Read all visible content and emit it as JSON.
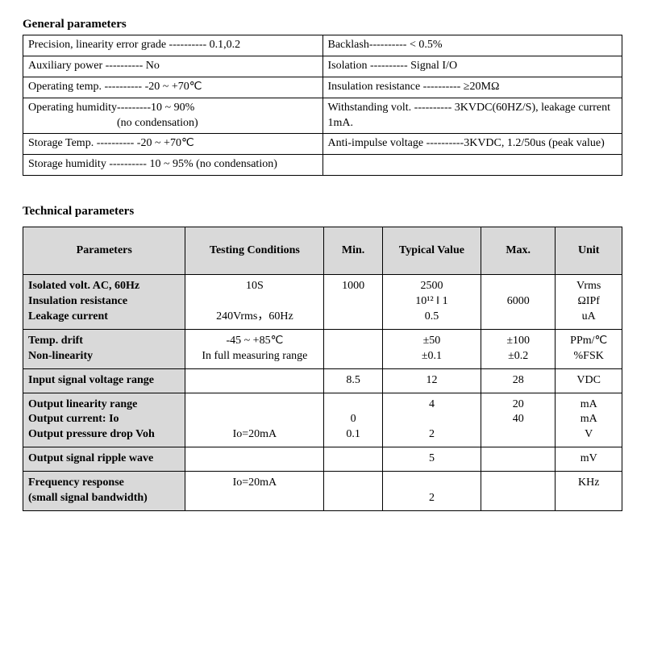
{
  "general": {
    "title": "General parameters",
    "rows": [
      {
        "left": "Precision, linearity error grade ---------- 0.1,0.2",
        "right": "Backlash---------- < 0.5%"
      },
      {
        "left": "Auxiliary power ---------- No",
        "right": "Isolation    ---------- Signal I/O"
      },
      {
        "left": "Operating temp. ---------- -20 ~ +70℃",
        "right": "Insulation resistance   ---------- ≥20MΩ"
      },
      {
        "left": "Operating humidity---------10 ~ 90%",
        "left2": "(no condensation)",
        "right": "Withstanding  volt.  ----------  3KVDC(60HZ/S),  leakage current 1mA."
      },
      {
        "left": "Storage Temp. ---------- -20 ~ +70℃",
        "right": "Anti-impulse  voltage  ----------3KVDC,  1.2/50us  (peak value)"
      },
      {
        "left": "Storage humidity ---------- 10 ~ 95% (no condensation)",
        "right": ""
      }
    ]
  },
  "technical": {
    "title": "Technical parameters",
    "headers": {
      "p": "Parameters",
      "c": "Testing Conditions",
      "min": "Min.",
      "typ": "Typical Value",
      "max": "Max.",
      "unit": "Unit"
    },
    "group1": {
      "params": [
        "Isolated volt. AC, 60Hz",
        "Insulation resistance",
        "Leakage current"
      ],
      "cond": [
        "10S",
        "",
        "240Vrms，60Hz"
      ],
      "min": [
        "1000",
        "",
        ""
      ],
      "typ": [
        "2500",
        "10¹² ‖ 1",
        "0.5"
      ],
      "max": [
        "",
        "6000",
        ""
      ],
      "unit": [
        "Vrms",
        "ΩIPf",
        "uA"
      ]
    },
    "group2": {
      "params": [
        "Temp. drift",
        "Non-linearity"
      ],
      "cond": [
        "-45 ~ +85℃",
        "In full measuring range"
      ],
      "min": [
        "",
        ""
      ],
      "typ": [
        "±50",
        "±0.1"
      ],
      "max": [
        "±100",
        "±0.2"
      ],
      "unit": [
        "PPm/℃",
        "%FSK"
      ]
    },
    "group3": {
      "params": [
        "Input signal voltage range"
      ],
      "cond": [
        ""
      ],
      "min": [
        "8.5"
      ],
      "typ": [
        "12"
      ],
      "max": [
        "28"
      ],
      "unit": [
        "VDC"
      ]
    },
    "group4": {
      "params": [
        "Output linearity range",
        "Output current: Io",
        "Output pressure drop Voh"
      ],
      "cond": [
        "",
        "",
        "Io=20mA"
      ],
      "min": [
        "",
        "0",
        "0.1"
      ],
      "typ": [
        "4",
        "",
        "2"
      ],
      "max": [
        "20",
        "40",
        ""
      ],
      "unit": [
        "mA",
        "mA",
        "V"
      ]
    },
    "group5": {
      "params": [
        "Output signal ripple wave"
      ],
      "cond": [
        ""
      ],
      "min": [
        ""
      ],
      "typ": [
        "5"
      ],
      "max": [
        ""
      ],
      "unit": [
        "mV"
      ]
    },
    "group6": {
      "params": [
        "Frequency response",
        "(small signal bandwidth)"
      ],
      "cond": [
        "Io=20mA"
      ],
      "min": [
        ""
      ],
      "typ": [
        "2"
      ],
      "max": [
        ""
      ],
      "unit": [
        "KHz"
      ]
    }
  }
}
